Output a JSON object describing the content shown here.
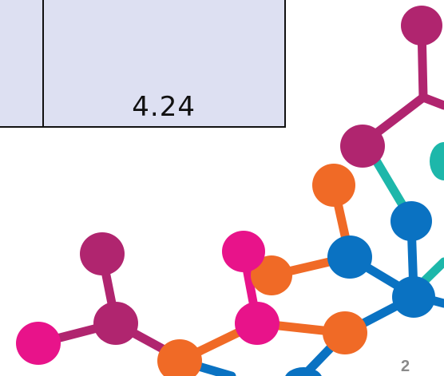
{
  "table": {
    "cell_value": "4.24"
  },
  "slide": {
    "page_number": "2"
  },
  "decoration": {
    "name": "molecule-network-graphic",
    "colors": {
      "magenta": "#b0256f",
      "pink": "#e8138a",
      "orange": "#f06a26",
      "blue": "#0a72c2",
      "teal": "#1db7aa"
    }
  }
}
